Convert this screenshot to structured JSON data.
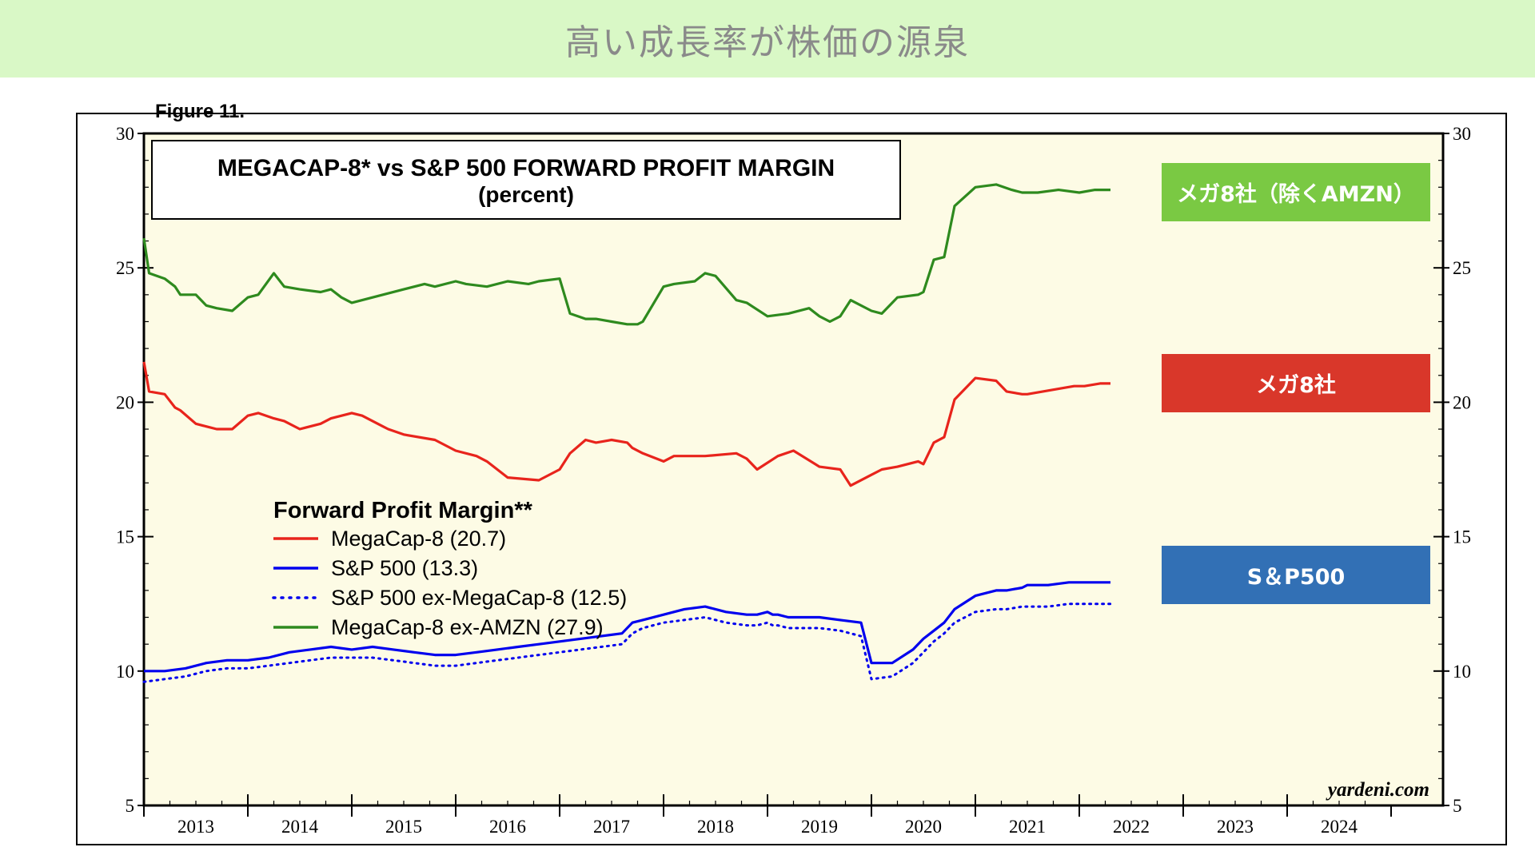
{
  "page_title": "高い成長率が株価の源泉",
  "header_fragment": "Figure 11.",
  "colors": {
    "banner_bg": "#d9f8c6",
    "plot_bg": "#fdfbe5",
    "megacap": "#e8241c",
    "sp500": "#0000ee",
    "ex_megacap": "#0000ee",
    "ex_amzn": "#2e8a1e",
    "tag_green": "#7ac943",
    "tag_red": "#d9372a",
    "tag_blue": "#3270b5"
  },
  "tags": {
    "ex_amzn": "メガ8社（除くAMZN）",
    "megacap": "メガ8社",
    "sp500": "S＆P500"
  },
  "chart_data": {
    "type": "line",
    "title": "MEGACAP-8* vs S&P 500 FORWARD PROFIT MARGIN",
    "subtitle": "(percent)",
    "ylim": [
      5,
      30
    ],
    "xlim": [
      2012.5,
      2025.0
    ],
    "yticks": [
      5,
      10,
      15,
      20,
      25,
      30
    ],
    "xtick_labels": [
      "2013",
      "2014",
      "2015",
      "2016",
      "2017",
      "2018",
      "2019",
      "2020",
      "2021",
      "2022",
      "2023",
      "2024"
    ],
    "legend_title": "Forward Profit Margin**",
    "legend_position": "center-left",
    "source": "yardeni.com",
    "grid": false,
    "series": [
      {
        "name": "MegaCap-8 (20.7)",
        "key": "megacap",
        "style": "solid",
        "x": [
          2012.5,
          2012.55,
          2012.7,
          2012.8,
          2012.85,
          2013.0,
          2013.1,
          2013.2,
          2013.35,
          2013.5,
          2013.6,
          2013.75,
          2013.85,
          2014.0,
          2014.2,
          2014.25,
          2014.3,
          2014.5,
          2014.6,
          2014.8,
          2014.85,
          2015.0,
          2015.3,
          2015.5,
          2015.7,
          2015.8,
          2016.0,
          2016.3,
          2016.5,
          2016.6,
          2016.75,
          2016.85,
          2017.0,
          2017.15,
          2017.2,
          2017.3,
          2017.5,
          2017.6,
          2017.9,
          2018.2,
          2018.3,
          2018.4,
          2018.6,
          2018.75,
          2019.0,
          2019.2,
          2019.3,
          2019.5,
          2019.6,
          2019.75,
          2019.95,
          2020.0,
          2020.1,
          2020.2,
          2020.3,
          2020.5,
          2020.7,
          2020.8,
          2020.95,
          2021.0,
          2021.15,
          2021.3,
          2021.45,
          2021.55,
          2021.7,
          2021.8
        ],
        "y": [
          21.5,
          20.4,
          20.3,
          19.8,
          19.7,
          19.2,
          19.1,
          19.0,
          19.0,
          19.5,
          19.6,
          19.4,
          19.3,
          19.0,
          19.2,
          19.3,
          19.4,
          19.6,
          19.5,
          19.1,
          19.0,
          18.8,
          18.6,
          18.2,
          18.0,
          17.8,
          17.2,
          17.1,
          17.5,
          18.1,
          18.6,
          18.5,
          18.6,
          18.5,
          18.3,
          18.1,
          17.8,
          18.0,
          18.0,
          18.1,
          17.9,
          17.5,
          18.0,
          18.2,
          17.6,
          17.5,
          16.9,
          17.3,
          17.5,
          17.6,
          17.8,
          17.7,
          18.5,
          18.7,
          20.1,
          20.9,
          20.8,
          20.4,
          20.3,
          20.3,
          20.4,
          20.5,
          20.6,
          20.6,
          20.7,
          20.7
        ]
      },
      {
        "name": "S&P 500 (13.3)",
        "key": "sp500",
        "style": "solid",
        "x": [
          2012.5,
          2012.7,
          2012.9,
          2013.1,
          2013.3,
          2013.5,
          2013.7,
          2013.9,
          2014.1,
          2014.3,
          2014.5,
          2014.7,
          2014.9,
          2015.1,
          2015.3,
          2015.5,
          2015.7,
          2015.9,
          2016.1,
          2016.3,
          2016.5,
          2016.7,
          2016.9,
          2017.1,
          2017.2,
          2017.3,
          2017.5,
          2017.7,
          2017.9,
          2018.1,
          2018.3,
          2018.4,
          2018.5,
          2018.55,
          2018.6,
          2018.7,
          2018.8,
          2019.0,
          2019.2,
          2019.4,
          2019.5,
          2019.7,
          2019.9,
          2020.0,
          2020.1,
          2020.2,
          2020.3,
          2020.5,
          2020.7,
          2020.8,
          2020.95,
          2021.0,
          2021.2,
          2021.4,
          2021.6,
          2021.8
        ],
        "y": [
          10.0,
          10.0,
          10.1,
          10.3,
          10.4,
          10.4,
          10.5,
          10.7,
          10.8,
          10.9,
          10.8,
          10.9,
          10.8,
          10.7,
          10.6,
          10.6,
          10.7,
          10.8,
          10.9,
          11.0,
          11.1,
          11.2,
          11.3,
          11.4,
          11.8,
          11.9,
          12.1,
          12.3,
          12.4,
          12.2,
          12.1,
          12.1,
          12.2,
          12.1,
          12.1,
          12.0,
          12.0,
          12.0,
          11.9,
          11.8,
          10.3,
          10.3,
          10.8,
          11.2,
          11.5,
          11.8,
          12.3,
          12.8,
          13.0,
          13.0,
          13.1,
          13.2,
          13.2,
          13.3,
          13.3,
          13.3
        ]
      },
      {
        "name": "S&P 500 ex-MegaCap-8 (12.5)",
        "key": "ex_megacap",
        "style": "dotted",
        "x": [
          2012.5,
          2012.7,
          2012.9,
          2013.1,
          2013.3,
          2013.5,
          2013.7,
          2013.9,
          2014.1,
          2014.3,
          2014.5,
          2014.7,
          2014.9,
          2015.1,
          2015.3,
          2015.5,
          2015.7,
          2015.9,
          2016.1,
          2016.3,
          2016.5,
          2016.7,
          2016.9,
          2017.1,
          2017.2,
          2017.3,
          2017.5,
          2017.7,
          2017.9,
          2018.1,
          2018.3,
          2018.4,
          2018.5,
          2018.55,
          2018.6,
          2018.7,
          2018.8,
          2019.0,
          2019.2,
          2019.4,
          2019.5,
          2019.7,
          2019.9,
          2020.0,
          2020.1,
          2020.2,
          2020.3,
          2020.5,
          2020.7,
          2020.8,
          2020.95,
          2021.0,
          2021.2,
          2021.4,
          2021.6,
          2021.8
        ],
        "y": [
          9.6,
          9.7,
          9.8,
          10.0,
          10.1,
          10.1,
          10.2,
          10.3,
          10.4,
          10.5,
          10.5,
          10.5,
          10.4,
          10.3,
          10.2,
          10.2,
          10.3,
          10.4,
          10.5,
          10.6,
          10.7,
          10.8,
          10.9,
          11.0,
          11.4,
          11.6,
          11.8,
          11.9,
          12.0,
          11.8,
          11.7,
          11.7,
          11.8,
          11.7,
          11.7,
          11.6,
          11.6,
          11.6,
          11.5,
          11.3,
          9.7,
          9.8,
          10.3,
          10.7,
          11.1,
          11.4,
          11.8,
          12.2,
          12.3,
          12.3,
          12.4,
          12.4,
          12.4,
          12.5,
          12.5,
          12.5
        ]
      },
      {
        "name": "MegaCap-8 ex-AMZN (27.9)",
        "key": "ex_amzn",
        "style": "solid",
        "x": [
          2012.5,
          2012.55,
          2012.7,
          2012.8,
          2012.85,
          2013.0,
          2013.1,
          2013.2,
          2013.35,
          2013.5,
          2013.6,
          2013.75,
          2013.85,
          2014.0,
          2014.2,
          2014.3,
          2014.4,
          2014.5,
          2014.6,
          2014.8,
          2015.0,
          2015.2,
          2015.3,
          2015.5,
          2015.6,
          2015.8,
          2016.0,
          2016.2,
          2016.3,
          2016.5,
          2016.6,
          2016.75,
          2016.85,
          2017.0,
          2017.15,
          2017.25,
          2017.3,
          2017.5,
          2017.6,
          2017.8,
          2017.9,
          2018.0,
          2018.2,
          2018.3,
          2018.5,
          2018.7,
          2018.9,
          2019.0,
          2019.1,
          2019.2,
          2019.3,
          2019.5,
          2019.6,
          2019.75,
          2019.95,
          2020.0,
          2020.1,
          2020.2,
          2020.3,
          2020.5,
          2020.7,
          2020.85,
          2020.95,
          2021.1,
          2021.3,
          2021.5,
          2021.65,
          2021.8
        ],
        "y": [
          26.1,
          24.8,
          24.6,
          24.3,
          24.0,
          24.0,
          23.6,
          23.5,
          23.4,
          23.9,
          24.0,
          24.8,
          24.3,
          24.2,
          24.1,
          24.2,
          23.9,
          23.7,
          23.8,
          24.0,
          24.2,
          24.4,
          24.3,
          24.5,
          24.4,
          24.3,
          24.5,
          24.4,
          24.5,
          24.6,
          23.3,
          23.1,
          23.1,
          23.0,
          22.9,
          22.9,
          23.0,
          24.3,
          24.4,
          24.5,
          24.8,
          24.7,
          23.8,
          23.7,
          23.2,
          23.3,
          23.5,
          23.2,
          23.0,
          23.2,
          23.8,
          23.4,
          23.3,
          23.9,
          24.0,
          24.1,
          25.3,
          25.4,
          27.3,
          28.0,
          28.1,
          27.9,
          27.8,
          27.8,
          27.9,
          27.8,
          27.9,
          27.9
        ]
      }
    ]
  }
}
